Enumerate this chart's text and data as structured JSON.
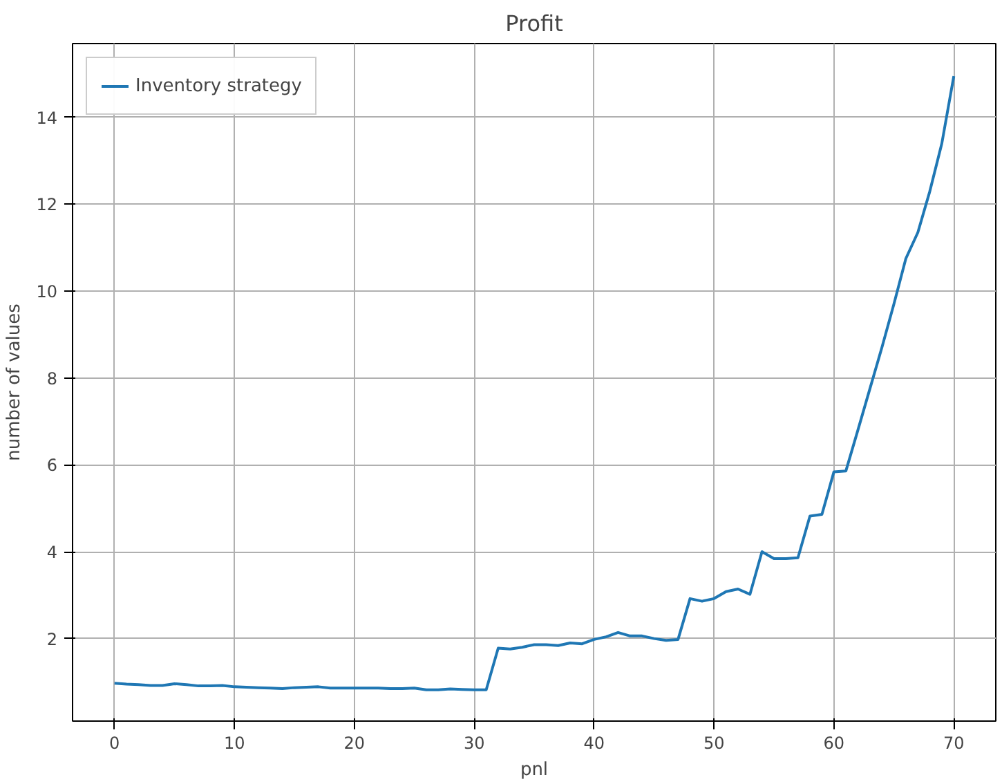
{
  "chart_data": {
    "type": "line",
    "title": "Profit",
    "xlabel": "pnl",
    "ylabel": "number of values",
    "x": [
      0,
      1,
      2,
      3,
      4,
      5,
      6,
      7,
      8,
      9,
      10,
      11,
      12,
      13,
      14,
      15,
      16,
      17,
      18,
      19,
      20,
      21,
      22,
      23,
      24,
      25,
      26,
      27,
      28,
      29,
      30,
      31,
      32,
      33,
      34,
      35,
      36,
      37,
      38,
      39,
      40,
      41,
      42,
      43,
      44,
      45,
      46,
      47,
      48,
      49,
      50,
      51,
      52,
      53,
      54,
      55,
      56,
      57,
      58,
      59,
      60,
      61,
      62,
      63,
      64,
      65,
      66,
      67,
      68,
      69,
      70
    ],
    "series": [
      {
        "name": "Inventory strategy",
        "color": "#1f77b4",
        "values": [
          0.97,
          0.95,
          0.94,
          0.92,
          0.92,
          0.96,
          0.94,
          0.91,
          0.91,
          0.92,
          0.89,
          0.88,
          0.87,
          0.86,
          0.85,
          0.87,
          0.88,
          0.89,
          0.86,
          0.86,
          0.86,
          0.86,
          0.86,
          0.85,
          0.85,
          0.86,
          0.82,
          0.82,
          0.84,
          0.83,
          0.82,
          0.82,
          1.78,
          1.76,
          1.8,
          1.86,
          1.86,
          1.84,
          1.9,
          1.88,
          1.98,
          2.04,
          2.14,
          2.06,
          2.06,
          2.0,
          1.96,
          1.98,
          2.92,
          2.86,
          2.92,
          3.08,
          3.14,
          3.02,
          4.0,
          3.84,
          3.84,
          3.86,
          4.82,
          4.86,
          5.84,
          5.86,
          6.8,
          7.75,
          8.7,
          9.7,
          10.75,
          11.35,
          12.3,
          13.4,
          14.95
        ]
      }
    ],
    "xlim": [
      -3.5,
      73.5
    ],
    "ylim": [
      0.1,
      15.7
    ],
    "xticks": [
      0,
      10,
      20,
      30,
      40,
      50,
      60,
      70
    ],
    "yticks": [
      2,
      4,
      6,
      8,
      10,
      12,
      14
    ],
    "grid": true,
    "legend": "top left",
    "line_style": "solid",
    "marker": "none"
  }
}
